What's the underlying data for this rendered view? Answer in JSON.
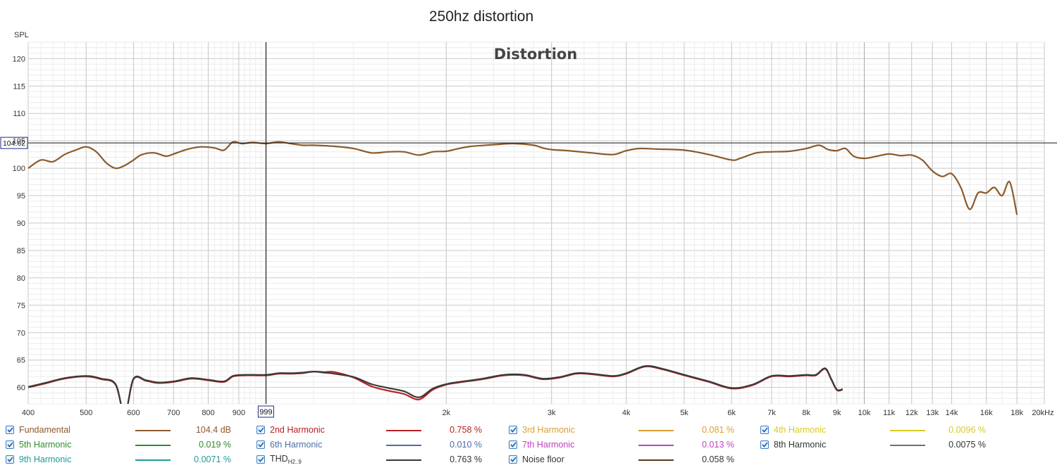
{
  "page_title": "250hz distortion",
  "chart_data": {
    "type": "line",
    "title": "Distortion",
    "ylabel": "SPL",
    "x_scale": "log",
    "xlim": [
      400,
      20000
    ],
    "ylim": [
      57,
      123
    ],
    "grid": true,
    "y_ticks": [
      60,
      65,
      70,
      75,
      80,
      85,
      90,
      95,
      100,
      105,
      110,
      115,
      120
    ],
    "x_ticks": [
      {
        "v": 400,
        "label": "400"
      },
      {
        "v": 500,
        "label": "500"
      },
      {
        "v": 600,
        "label": "600"
      },
      {
        "v": 700,
        "label": "700"
      },
      {
        "v": 800,
        "label": "800"
      },
      {
        "v": 900,
        "label": "900"
      },
      {
        "v": 2000,
        "label": "2k"
      },
      {
        "v": 3000,
        "label": "3k"
      },
      {
        "v": 4000,
        "label": "4k"
      },
      {
        "v": 5000,
        "label": "5k"
      },
      {
        "v": 6000,
        "label": "6k"
      },
      {
        "v": 7000,
        "label": "7k"
      },
      {
        "v": 8000,
        "label": "8k"
      },
      {
        "v": 9000,
        "label": "9k"
      },
      {
        "v": 10000,
        "label": "10k"
      },
      {
        "v": 11000,
        "label": "11k"
      },
      {
        "v": 12000,
        "label": "12k"
      },
      {
        "v": 13000,
        "label": "13k"
      },
      {
        "v": 14000,
        "label": "14k"
      },
      {
        "v": 16000,
        "label": "16k"
      },
      {
        "v": 18000,
        "label": "18k"
      },
      {
        "v": 20000,
        "label": "20kHz"
      }
    ],
    "cursor": {
      "x": 999,
      "x_label": "999",
      "y": 104.62,
      "y_label": "104.62"
    },
    "series": [
      {
        "name": "Fundamental",
        "color": "#8b5a2b",
        "points": [
          [
            400,
            100
          ],
          [
            420,
            101.5
          ],
          [
            440,
            101.2
          ],
          [
            460,
            102.5
          ],
          [
            480,
            103.3
          ],
          [
            500,
            103.9
          ],
          [
            520,
            103
          ],
          [
            540,
            101
          ],
          [
            560,
            100
          ],
          [
            580,
            100.5
          ],
          [
            600,
            101.5
          ],
          [
            620,
            102.5
          ],
          [
            650,
            102.8
          ],
          [
            680,
            102.2
          ],
          [
            700,
            102.6
          ],
          [
            740,
            103.5
          ],
          [
            780,
            103.9
          ],
          [
            820,
            103.7
          ],
          [
            850,
            103.3
          ],
          [
            880,
            104.8
          ],
          [
            910,
            104.5
          ],
          [
            950,
            104.7
          ],
          [
            999,
            104.5
          ],
          [
            1050,
            104.8
          ],
          [
            1100,
            104.5
          ],
          [
            1150,
            104.2
          ],
          [
            1200,
            104.2
          ],
          [
            1300,
            104
          ],
          [
            1400,
            103.6
          ],
          [
            1500,
            102.8
          ],
          [
            1600,
            103
          ],
          [
            1700,
            103
          ],
          [
            1800,
            102.4
          ],
          [
            1900,
            103
          ],
          [
            2000,
            103.1
          ],
          [
            2100,
            103.6
          ],
          [
            2200,
            104
          ],
          [
            2400,
            104.3
          ],
          [
            2600,
            104.5
          ],
          [
            2800,
            104.2
          ],
          [
            2900,
            103.7
          ],
          [
            3000,
            103.4
          ],
          [
            3200,
            103.2
          ],
          [
            3500,
            102.8
          ],
          [
            3800,
            102.5
          ],
          [
            4000,
            103.2
          ],
          [
            4200,
            103.6
          ],
          [
            4500,
            103.5
          ],
          [
            5000,
            103.3
          ],
          [
            5500,
            102.5
          ],
          [
            6000,
            101.5
          ],
          [
            6200,
            101.8
          ],
          [
            6600,
            102.8
          ],
          [
            7000,
            103
          ],
          [
            7500,
            103.1
          ],
          [
            8000,
            103.6
          ],
          [
            8400,
            104.2
          ],
          [
            8700,
            103.4
          ],
          [
            9000,
            103.2
          ],
          [
            9300,
            103.6
          ],
          [
            9600,
            102.2
          ],
          [
            10000,
            101.8
          ],
          [
            10500,
            102.2
          ],
          [
            11000,
            102.6
          ],
          [
            11500,
            102.3
          ],
          [
            12000,
            102.4
          ],
          [
            12500,
            101.5
          ],
          [
            13000,
            99.5
          ],
          [
            13500,
            98.5
          ],
          [
            14000,
            99
          ],
          [
            14500,
            96.5
          ],
          [
            15000,
            92.5
          ],
          [
            15500,
            95.5
          ],
          [
            16000,
            95.5
          ],
          [
            16500,
            96.5
          ],
          [
            17000,
            95
          ],
          [
            17500,
            97.5
          ],
          [
            18000,
            91.5
          ]
        ]
      },
      {
        "name": "2nd Harmonic",
        "color": "#b82020",
        "points": [
          [
            400,
            60
          ],
          [
            430,
            60.8
          ],
          [
            460,
            61.6
          ],
          [
            500,
            62
          ],
          [
            530,
            61.5
          ],
          [
            560,
            60.5
          ],
          [
            580,
            55
          ],
          [
            600,
            61.5
          ],
          [
            630,
            61.2
          ],
          [
            660,
            60.8
          ],
          [
            700,
            61
          ],
          [
            750,
            61.6
          ],
          [
            800,
            61.3
          ],
          [
            850,
            61
          ],
          [
            880,
            62
          ],
          [
            920,
            62.2
          ],
          [
            999,
            62.2
          ],
          [
            1050,
            62.5
          ],
          [
            1100,
            62.5
          ],
          [
            1150,
            62.6
          ],
          [
            1200,
            62.9
          ],
          [
            1250,
            62.8
          ],
          [
            1300,
            62.8
          ],
          [
            1400,
            61.8
          ],
          [
            1500,
            60.2
          ],
          [
            1600,
            59.4
          ],
          [
            1700,
            58.8
          ],
          [
            1800,
            57.8
          ],
          [
            1900,
            59.6
          ],
          [
            2000,
            60.5
          ],
          [
            2100,
            60.9
          ],
          [
            2300,
            61.5
          ],
          [
            2500,
            62.2
          ],
          [
            2700,
            62.2
          ],
          [
            2900,
            61.5
          ],
          [
            3100,
            61.8
          ],
          [
            3300,
            62.5
          ],
          [
            3500,
            62.4
          ],
          [
            3800,
            62
          ],
          [
            4000,
            62.5
          ],
          [
            4300,
            63.8
          ],
          [
            4600,
            63.3
          ],
          [
            5000,
            62.2
          ],
          [
            5500,
            61
          ],
          [
            6000,
            59.8
          ],
          [
            6500,
            60.4
          ],
          [
            7000,
            62
          ],
          [
            7500,
            62
          ],
          [
            8000,
            62.2
          ],
          [
            8300,
            62.2
          ],
          [
            8600,
            63.4
          ],
          [
            8800,
            61.5
          ],
          [
            9000,
            59.5
          ],
          [
            9200,
            59.6
          ]
        ]
      },
      {
        "name": "THD H2..9",
        "color": "#3a3a3a",
        "points": [
          [
            400,
            60.1
          ],
          [
            430,
            60.9
          ],
          [
            460,
            61.7
          ],
          [
            500,
            62.1
          ],
          [
            530,
            61.6
          ],
          [
            560,
            60.6
          ],
          [
            580,
            55.1
          ],
          [
            600,
            61.6
          ],
          [
            630,
            61.3
          ],
          [
            660,
            60.9
          ],
          [
            700,
            61.1
          ],
          [
            750,
            61.7
          ],
          [
            800,
            61.4
          ],
          [
            850,
            61.1
          ],
          [
            880,
            62.1
          ],
          [
            920,
            62.3
          ],
          [
            999,
            62.3
          ],
          [
            1050,
            62.6
          ],
          [
            1100,
            62.6
          ],
          [
            1150,
            62.7
          ],
          [
            1200,
            62.9
          ],
          [
            1250,
            62.7
          ],
          [
            1300,
            62.5
          ],
          [
            1400,
            61.9
          ],
          [
            1500,
            60.6
          ],
          [
            1600,
            59.9
          ],
          [
            1700,
            59.3
          ],
          [
            1800,
            58.2
          ],
          [
            1900,
            59.8
          ],
          [
            2000,
            60.6
          ],
          [
            2100,
            61
          ],
          [
            2300,
            61.6
          ],
          [
            2500,
            62.3
          ],
          [
            2700,
            62.3
          ],
          [
            2900,
            61.6
          ],
          [
            3100,
            61.9
          ],
          [
            3300,
            62.6
          ],
          [
            3500,
            62.5
          ],
          [
            3800,
            62.1
          ],
          [
            4000,
            62.6
          ],
          [
            4300,
            63.9
          ],
          [
            4600,
            63.4
          ],
          [
            5000,
            62.3
          ],
          [
            5500,
            61.1
          ],
          [
            6000,
            59.9
          ],
          [
            6500,
            60.5
          ],
          [
            7000,
            62.1
          ],
          [
            7500,
            62.1
          ],
          [
            8000,
            62.3
          ],
          [
            8300,
            62.3
          ],
          [
            8600,
            63.5
          ],
          [
            8800,
            61.6
          ],
          [
            9000,
            59.6
          ],
          [
            9200,
            59.7
          ]
        ]
      }
    ],
    "legend": [
      {
        "label": "Fundamental",
        "color": "#8b5a2b",
        "value": "104.4 dB",
        "checked": true
      },
      {
        "label": "2nd Harmonic",
        "color": "#b82020",
        "value": "0.758 %",
        "checked": true
      },
      {
        "label": "3rd Harmonic",
        "color": "#d8a030",
        "value": "0.081 %",
        "checked": true
      },
      {
        "label": "4th Harmonic",
        "color": "#d8cc20",
        "value": "0.0096 %",
        "checked": true
      },
      {
        "label": "5th Harmonic",
        "color": "#2e8b2e",
        "value": "0.019 %",
        "checked": true
      },
      {
        "label": "6th Harmonic",
        "color": "#4a6fa5",
        "value": "0.010 %",
        "checked": true
      },
      {
        "label": "7th Harmonic",
        "color": "#c040c0",
        "value": "0.013 %",
        "checked": true
      },
      {
        "label": "8th Harmonic",
        "color": "#707070",
        "value": "0.0075 %",
        "checked": true
      },
      {
        "label": "9th Harmonic",
        "color": "#209a9a",
        "value": "0.0071 %",
        "checked": true
      },
      {
        "label": "THD",
        "label_sub": "H2..9",
        "color": "#3a3a3a",
        "value": "0.763 %",
        "checked": true
      },
      {
        "label": "Noise floor",
        "color": "#5a3a1a",
        "value": "0.058 %",
        "checked": true
      }
    ]
  }
}
